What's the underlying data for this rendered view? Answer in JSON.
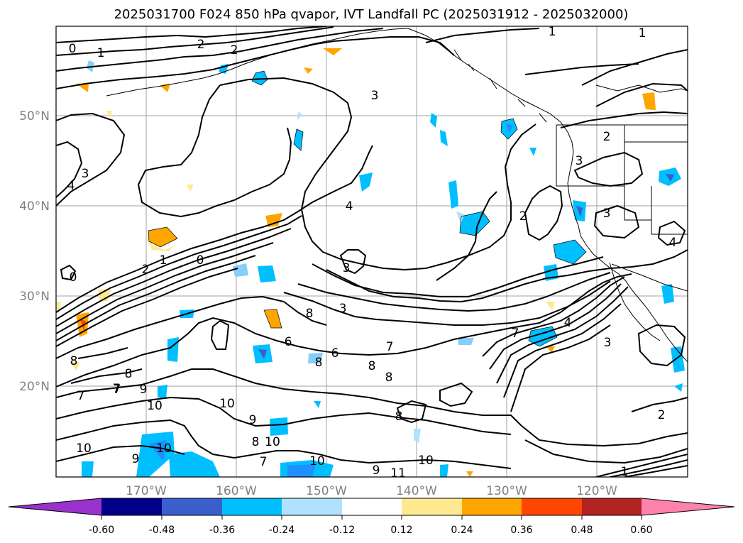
{
  "title": "2025031700 F024 850 hPa qvapor, IVT Landfall PC (2025031912 - 2025032000)",
  "map": {
    "lat_labels": [
      "50°N",
      "40°N",
      "30°N",
      "20°N"
    ],
    "lon_labels": [
      "170°W",
      "160°W",
      "150°W",
      "140°W",
      "130°W",
      "120°W"
    ],
    "contour_labels": [
      "0",
      "1",
      "2",
      "1",
      "3",
      "1",
      "4",
      "3",
      "4",
      "3",
      "2",
      "2",
      "1",
      "0",
      "2",
      "0",
      "3",
      "3",
      "2",
      "3",
      "4",
      "4",
      "8",
      "6",
      "6",
      "7",
      "8",
      "8",
      "8",
      "7",
      "3",
      "8",
      "7",
      "9",
      "10",
      "10",
      "7",
      "9",
      "8",
      "10",
      "10",
      "9",
      "7",
      "8",
      "8",
      "10",
      "11",
      "10",
      "10",
      "9",
      "1",
      "2",
      "7"
    ],
    "shading_colors": {
      "neg_strong": "#1e90ff",
      "neg_mid": "#00bfff",
      "neg_weak": "#b0e0ff",
      "pos_weak": "#ffe680",
      "pos_mid": "#ffa500",
      "pos_strong": "#ff4500"
    }
  },
  "colorbar": {
    "levels": [
      "-0.60",
      "-0.48",
      "-0.36",
      "-0.24",
      "-0.12",
      "0.12",
      "0.24",
      "0.36",
      "0.48",
      "0.60"
    ],
    "colors": [
      "#9932cc",
      "#00008b",
      "#3a5fcd",
      "#00bfff",
      "#b0e2ff",
      "#ffffff",
      "#ffe990",
      "#ffa500",
      "#ff4500",
      "#b22222",
      "#ff82ab"
    ],
    "extend": "both"
  }
}
